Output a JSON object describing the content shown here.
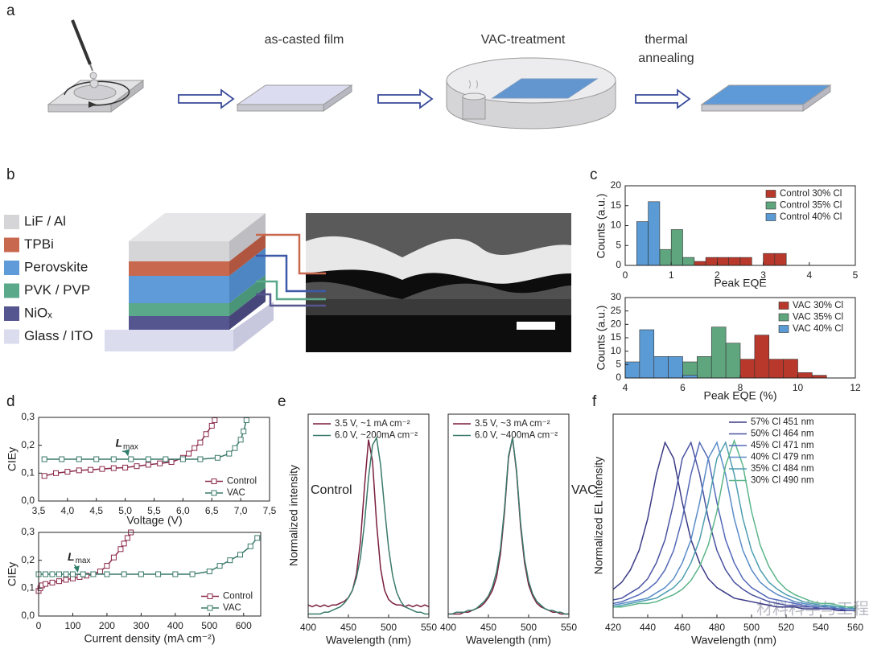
{
  "panel_labels": [
    "a",
    "b",
    "c",
    "d",
    "e",
    "f"
  ],
  "process_steps": [
    "as-casted film",
    "VAC-treatment",
    "thermal annealing"
  ],
  "layers": [
    {
      "label": "LiF / Al",
      "color": "#d5d5d8"
    },
    {
      "label": "TPBi",
      "color": "#c8684f"
    },
    {
      "label": "Perovskite",
      "color": "#5f9bd8"
    },
    {
      "label": "PVK / PVP",
      "color": "#5aa98a"
    },
    {
      "label": "NiOₓ",
      "color": "#555590"
    },
    {
      "label": "Glass / ITO",
      "color": "#dcdcef"
    }
  ],
  "watermark": "材料科学与工程",
  "chart_data": [
    {
      "type": "histogram",
      "xlabel": "Peak EQE",
      "ylabel": "Counts (a.u.)",
      "xlim": [
        0,
        5
      ],
      "ylim": [
        0,
        20
      ],
      "xticks": [
        0,
        1,
        2,
        3,
        4,
        5
      ],
      "yticks": [
        0,
        5,
        10,
        15,
        20
      ],
      "legend": "upper right",
      "series": [
        {
          "name": "Control 30% Cl",
          "color": "#b8382c",
          "bins": [
            1.5,
            1.75,
            2,
            2.25,
            2.5,
            2.75,
            3,
            3.25,
            3.5
          ],
          "values": [
            1,
            2,
            2,
            2,
            2,
            0,
            3,
            3
          ]
        },
        {
          "name": "Control 35% Cl",
          "color": "#5fa67f",
          "bins": [
            0.75,
            1,
            1.25,
            1.5
          ],
          "values": [
            4,
            9,
            2
          ]
        },
        {
          "name": "Control 40% Cl",
          "color": "#5b9bd5",
          "bins": [
            0.25,
            0.5,
            0.75
          ],
          "values": [
            11,
            16
          ]
        }
      ]
    },
    {
      "type": "histogram",
      "xlabel": "Peak EQE (%)",
      "ylabel": "Counts (a.u.)",
      "xlim": [
        4,
        12
      ],
      "ylim": [
        0,
        30
      ],
      "xticks": [
        4,
        6,
        8,
        10,
        12
      ],
      "yticks": [
        0,
        5,
        10,
        15,
        20,
        25,
        30
      ],
      "legend": "upper right",
      "series": [
        {
          "name": "VAC 30% Cl",
          "color": "#b8382c",
          "bins": [
            8,
            8.5,
            9,
            9.5,
            10,
            10.5,
            11
          ],
          "values": [
            7,
            16,
            7,
            7,
            2,
            1
          ]
        },
        {
          "name": "VAC 35% Cl",
          "color": "#5fa67f",
          "bins": [
            6,
            6.5,
            7,
            7.5,
            8
          ],
          "values": [
            6,
            8,
            19,
            13
          ]
        },
        {
          "name": "VAC 40% Cl",
          "color": "#5b9bd5",
          "bins": [
            4,
            4.5,
            5,
            5.5,
            6,
            6.5
          ],
          "values": [
            6,
            18,
            8,
            8,
            1
          ]
        }
      ]
    },
    {
      "type": "line",
      "markers": "square",
      "xlabel": "Voltage (V)",
      "ylabel": "CIEy",
      "xlim": [
        3.5,
        7.5
      ],
      "ylim": [
        0,
        0.3
      ],
      "xticks": [
        {
          "value": 3.5,
          "label": "3,5"
        },
        {
          "value": 4,
          "label": "4,0"
        },
        {
          "value": 4.5,
          "label": "4,5"
        },
        {
          "value": 5,
          "label": "5,0"
        },
        {
          "value": 5.5,
          "label": "5,5"
        },
        {
          "value": 6,
          "label": "6,0"
        },
        {
          "value": 6.5,
          "label": "6,5"
        },
        {
          "value": 7,
          "label": "7,0"
        },
        {
          "value": 7.5,
          "label": "7,5"
        }
      ],
      "yticks": [
        {
          "value": 0,
          "label": "0,0"
        },
        {
          "value": 0.1,
          "label": "0,1"
        },
        {
          "value": 0.2,
          "label": "0,2"
        },
        {
          "value": 0.3,
          "label": "0,3"
        }
      ],
      "legend": "lower right",
      "annotation": {
        "text": "L",
        "sub": "max"
      },
      "series": [
        {
          "name": "Control",
          "color": "#8b2a4a",
          "x": [
            3.6,
            3.8,
            4.0,
            4.2,
            4.4,
            4.6,
            4.8,
            5.0,
            5.2,
            5.4,
            5.6,
            5.8,
            6.0,
            6.1,
            6.2,
            6.3,
            6.4,
            6.5,
            6.55
          ],
          "values": [
            0.09,
            0.1,
            0.105,
            0.11,
            0.112,
            0.115,
            0.118,
            0.12,
            0.125,
            0.13,
            0.135,
            0.14,
            0.155,
            0.17,
            0.19,
            0.21,
            0.24,
            0.27,
            0.29
          ]
        },
        {
          "name": "VAC",
          "color": "#3a7a6a",
          "x": [
            3.6,
            3.9,
            4.2,
            4.5,
            4.8,
            5.1,
            5.4,
            5.7,
            6.0,
            6.3,
            6.6,
            6.8,
            6.9,
            7.0,
            7.05,
            7.1
          ],
          "values": [
            0.15,
            0.15,
            0.15,
            0.15,
            0.15,
            0.15,
            0.15,
            0.15,
            0.15,
            0.15,
            0.155,
            0.17,
            0.19,
            0.22,
            0.25,
            0.29
          ]
        }
      ]
    },
    {
      "type": "line",
      "markers": "square",
      "xlabel": "Current density (mA cm⁻²)",
      "ylabel": "CIEy",
      "xlim": [
        0,
        650
      ],
      "ylim": [
        0,
        0.3
      ],
      "xticks": [
        0,
        100,
        200,
        300,
        400,
        500,
        600
      ],
      "yticks": [
        {
          "value": 0,
          "label": "0,0"
        },
        {
          "value": 0.1,
          "label": "0,1"
        },
        {
          "value": 0.2,
          "label": "0,2"
        },
        {
          "value": 0.3,
          "label": "0,3"
        }
      ],
      "legend": "lower right",
      "annotation": {
        "text": "L",
        "sub": "max"
      },
      "series": [
        {
          "name": "Control",
          "color": "#8b2a4a",
          "x": [
            0,
            5,
            10,
            20,
            40,
            60,
            80,
            100,
            120,
            140,
            160,
            180,
            200,
            220,
            240,
            250,
            260,
            270
          ],
          "values": [
            0.09,
            0.1,
            0.11,
            0.115,
            0.12,
            0.125,
            0.13,
            0.135,
            0.14,
            0.145,
            0.15,
            0.16,
            0.18,
            0.21,
            0.24,
            0.26,
            0.28,
            0.3
          ]
        },
        {
          "name": "VAC",
          "color": "#3a7a6a",
          "x": [
            0,
            20,
            40,
            60,
            80,
            100,
            130,
            160,
            200,
            250,
            300,
            350,
            400,
            450,
            500,
            530,
            560,
            590,
            620,
            640
          ],
          "values": [
            0.15,
            0.15,
            0.15,
            0.15,
            0.15,
            0.15,
            0.15,
            0.15,
            0.15,
            0.15,
            0.15,
            0.15,
            0.15,
            0.15,
            0.16,
            0.18,
            0.2,
            0.22,
            0.25,
            0.28
          ]
        }
      ]
    },
    {
      "type": "line",
      "xlabel": "Wavelength (nm)",
      "ylabel": "Normalized intensity",
      "xlim": [
        400,
        550
      ],
      "ylim": [
        0,
        1.12
      ],
      "xticks": [
        400,
        450,
        500,
        550
      ],
      "legend": "upper left",
      "annotation": {
        "text": "Control"
      },
      "x": [
        400,
        405,
        410,
        415,
        420,
        425,
        430,
        435,
        440,
        445,
        450,
        455,
        460,
        465,
        470,
        475,
        480,
        485,
        490,
        495,
        500,
        505,
        510,
        515,
        520,
        525,
        530,
        535,
        540,
        545,
        550
      ],
      "series": [
        {
          "name": "3.5 V, ~1 mA cm⁻²",
          "color": "#7a1f3d",
          "values": [
            0.07,
            0.06,
            0.07,
            0.06,
            0.07,
            0.06,
            0.07,
            0.07,
            0.08,
            0.09,
            0.11,
            0.15,
            0.24,
            0.42,
            0.72,
            0.98,
            0.86,
            0.52,
            0.27,
            0.15,
            0.1,
            0.08,
            0.07,
            0.07,
            0.06,
            0.07,
            0.06,
            0.07,
            0.06,
            0.07,
            0.06
          ]
        },
        {
          "name": "6.0 V, ~200mA cm⁻²",
          "color": "#3a7a6a",
          "values": [
            0.02,
            0.02,
            0.02,
            0.02,
            0.03,
            0.03,
            0.04,
            0.05,
            0.06,
            0.08,
            0.11,
            0.15,
            0.22,
            0.33,
            0.52,
            0.77,
            0.95,
            0.99,
            0.84,
            0.6,
            0.38,
            0.23,
            0.14,
            0.09,
            0.06,
            0.05,
            0.04,
            0.03,
            0.03,
            0.02,
            0.02
          ]
        }
      ]
    },
    {
      "type": "line",
      "xlabel": "Wavelength (nm)",
      "xlim": [
        400,
        550
      ],
      "ylim": [
        0,
        1.12
      ],
      "xticks": [
        400,
        450,
        500,
        550
      ],
      "legend": "upper left",
      "annotation": {
        "text": "VAC"
      },
      "x": [
        400,
        405,
        410,
        415,
        420,
        425,
        430,
        435,
        440,
        445,
        450,
        455,
        460,
        465,
        470,
        475,
        480,
        485,
        490,
        495,
        500,
        505,
        510,
        515,
        520,
        525,
        530,
        535,
        540,
        545,
        550
      ],
      "series": [
        {
          "name": "3.5 V, ~3 mA cm⁻²",
          "color": "#7a1f3d",
          "values": [
            0.02,
            0.02,
            0.02,
            0.02,
            0.03,
            0.03,
            0.04,
            0.05,
            0.06,
            0.08,
            0.11,
            0.15,
            0.22,
            0.35,
            0.58,
            0.88,
            0.99,
            0.8,
            0.5,
            0.3,
            0.18,
            0.12,
            0.08,
            0.06,
            0.05,
            0.04,
            0.03,
            0.03,
            0.02,
            0.02,
            0.02
          ]
        },
        {
          "name": "6.0 V, ~400mA cm⁻²",
          "color": "#3a7a6a",
          "values": [
            0.02,
            0.02,
            0.03,
            0.03,
            0.03,
            0.04,
            0.04,
            0.05,
            0.07,
            0.09,
            0.12,
            0.17,
            0.25,
            0.38,
            0.6,
            0.89,
            0.99,
            0.81,
            0.52,
            0.32,
            0.2,
            0.13,
            0.09,
            0.07,
            0.05,
            0.04,
            0.04,
            0.03,
            0.03,
            0.02,
            0.02
          ]
        }
      ]
    },
    {
      "type": "line",
      "xlabel": "Wavelength (nm)",
      "ylabel": "Normalized EL intensity",
      "xlim": [
        420,
        560
      ],
      "ylim": [
        0,
        1.15
      ],
      "xticks": [
        420,
        440,
        460,
        480,
        500,
        520,
        540,
        560
      ],
      "legend": "upper right",
      "x": [
        420,
        425,
        430,
        435,
        440,
        445,
        450,
        455,
        460,
        465,
        470,
        475,
        480,
        485,
        490,
        495,
        500,
        505,
        510,
        515,
        520,
        525,
        530,
        535,
        540,
        545,
        550,
        555,
        560
      ],
      "series": [
        {
          "name": "57% Cl 451 nm",
          "color": "#3b3b86",
          "values": [
            0.16,
            0.2,
            0.27,
            0.38,
            0.56,
            0.81,
            0.99,
            0.9,
            0.65,
            0.44,
            0.31,
            0.22,
            0.17,
            0.14,
            0.11,
            0.1,
            0.09,
            0.08,
            0.07,
            0.06,
            0.06,
            0.06,
            0.05,
            0.05,
            0.05,
            0.05,
            0.04,
            0.04,
            0.04
          ]
        },
        {
          "name": "50% Cl 464 nm",
          "color": "#4a53a0",
          "values": [
            0.1,
            0.11,
            0.14,
            0.17,
            0.22,
            0.31,
            0.44,
            0.65,
            0.9,
            0.99,
            0.81,
            0.56,
            0.38,
            0.27,
            0.2,
            0.16,
            0.13,
            0.11,
            0.09,
            0.08,
            0.07,
            0.07,
            0.06,
            0.06,
            0.05,
            0.05,
            0.05,
            0.04,
            0.04
          ]
        },
        {
          "name": "45% Cl 471 nm",
          "color": "#5369b8",
          "values": [
            0.08,
            0.09,
            0.11,
            0.13,
            0.16,
            0.2,
            0.27,
            0.38,
            0.56,
            0.81,
            0.99,
            0.9,
            0.65,
            0.44,
            0.31,
            0.22,
            0.17,
            0.14,
            0.11,
            0.1,
            0.09,
            0.08,
            0.07,
            0.06,
            0.06,
            0.06,
            0.05,
            0.05,
            0.05
          ]
        },
        {
          "name": "40% Cl 479 nm",
          "color": "#5a8cc8",
          "values": [
            0.07,
            0.08,
            0.09,
            0.1,
            0.11,
            0.14,
            0.17,
            0.22,
            0.31,
            0.44,
            0.65,
            0.9,
            0.99,
            0.81,
            0.56,
            0.38,
            0.27,
            0.2,
            0.16,
            0.13,
            0.11,
            0.09,
            0.08,
            0.07,
            0.07,
            0.06,
            0.06,
            0.05,
            0.05
          ]
        },
        {
          "name": "35% Cl 484 nm",
          "color": "#4e9eb0",
          "values": [
            0.06,
            0.07,
            0.08,
            0.09,
            0.1,
            0.11,
            0.14,
            0.17,
            0.22,
            0.31,
            0.44,
            0.65,
            0.9,
            0.99,
            0.81,
            0.56,
            0.38,
            0.27,
            0.2,
            0.16,
            0.13,
            0.11,
            0.09,
            0.08,
            0.07,
            0.07,
            0.06,
            0.06,
            0.05
          ]
        },
        {
          "name": "30% Cl 490 nm",
          "color": "#5cb58a",
          "values": [
            0.06,
            0.06,
            0.07,
            0.08,
            0.08,
            0.09,
            0.11,
            0.13,
            0.16,
            0.21,
            0.29,
            0.41,
            0.6,
            0.86,
            1,
            0.86,
            0.6,
            0.41,
            0.29,
            0.21,
            0.16,
            0.13,
            0.11,
            0.09,
            0.08,
            0.08,
            0.07,
            0.06,
            0.06
          ]
        }
      ]
    }
  ]
}
